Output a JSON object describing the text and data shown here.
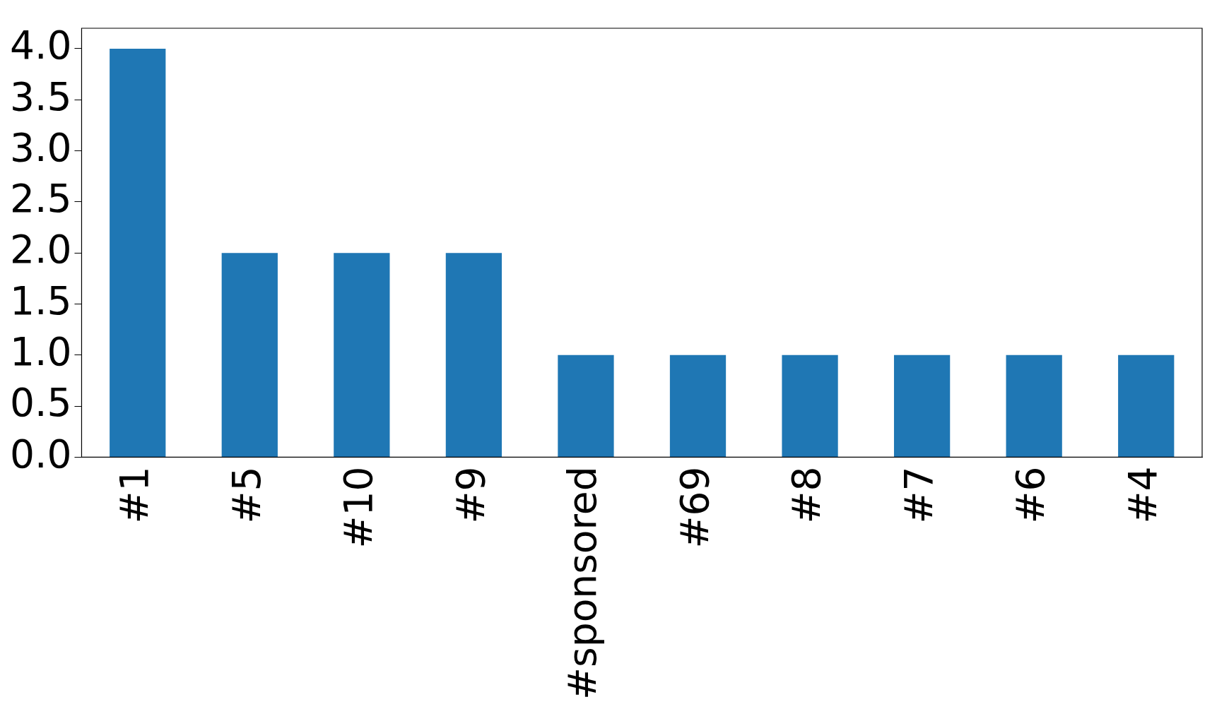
{
  "chart_data": {
    "type": "bar",
    "categories": [
      "#1",
      "#5",
      "#10",
      "#9",
      "#sponsored",
      "#69",
      "#8",
      "#7",
      "#6",
      "#4"
    ],
    "values": [
      4,
      2,
      2,
      2,
      1,
      1,
      1,
      1,
      1,
      1
    ],
    "color": "#1f77b4",
    "ylim": [
      0,
      4.2
    ],
    "yticks": [
      {
        "value": 0,
        "label": "0.0"
      },
      {
        "value": 0.5,
        "label": "0.5"
      },
      {
        "value": 1,
        "label": "1.0"
      },
      {
        "value": 1.5,
        "label": "1.5"
      },
      {
        "value": 2,
        "label": "2.0"
      },
      {
        "value": 2.5,
        "label": "2.5"
      },
      {
        "value": 3,
        "label": "3.0"
      },
      {
        "value": 3.5,
        "label": "3.5"
      },
      {
        "value": 4,
        "label": "4.0"
      }
    ],
    "grid": false,
    "legend": false
  }
}
